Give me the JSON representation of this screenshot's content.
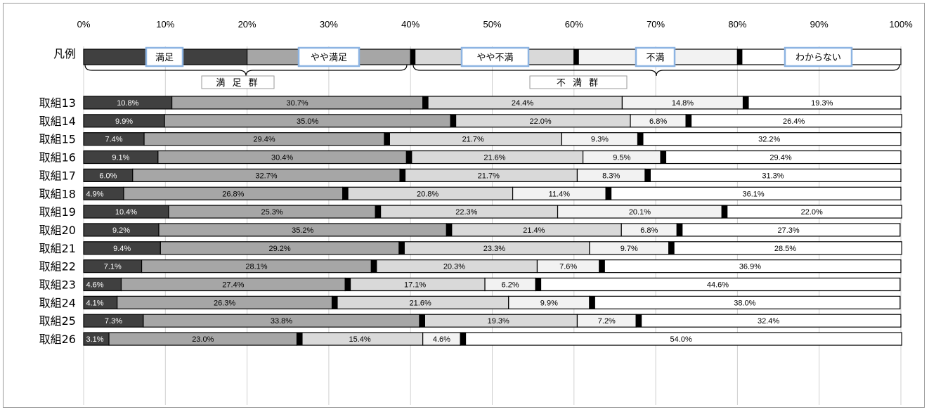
{
  "chart_data": {
    "type": "bar",
    "orientation": "horizontal-stacked-100",
    "x_ticks": [
      "0%",
      "10%",
      "20%",
      "30%",
      "40%",
      "50%",
      "60%",
      "70%",
      "80%",
      "90%",
      "100%"
    ],
    "xlim": [
      0,
      100
    ],
    "grid": true,
    "legend": {
      "row_label": "凡例",
      "items": [
        "満足",
        "やや満足",
        "やや不満",
        "不満",
        "わからない"
      ],
      "groups": [
        "満 足 群",
        "不 満 群"
      ]
    },
    "categories": [
      "取組13",
      "取組14",
      "取組15",
      "取組16",
      "取組17",
      "取組18",
      "取組19",
      "取組20",
      "取組21",
      "取組22",
      "取組23",
      "取組24",
      "取組25",
      "取組26"
    ],
    "series": [
      {
        "name": "満足",
        "color": "#404040",
        "label_color": "#ffffff",
        "values": [
          10.8,
          9.9,
          7.4,
          9.1,
          6.0,
          4.9,
          10.4,
          9.2,
          9.4,
          7.1,
          4.6,
          4.1,
          7.3,
          3.1
        ]
      },
      {
        "name": "やや満足",
        "color": "#a6a6a6",
        "label_color": "#000000",
        "values": [
          30.7,
          35.0,
          29.4,
          30.4,
          32.7,
          26.8,
          25.3,
          35.2,
          29.2,
          28.1,
          27.4,
          26.3,
          33.8,
          23.0
        ]
      },
      {
        "name": "やや不満",
        "color": "#d9d9d9",
        "label_color": "#000000",
        "values": [
          24.4,
          22.0,
          21.7,
          21.6,
          21.7,
          20.8,
          22.3,
          21.4,
          23.3,
          20.3,
          17.1,
          21.6,
          19.3,
          15.4
        ]
      },
      {
        "name": "不満",
        "color": "#f2f2f2",
        "label_color": "#000000",
        "values": [
          14.8,
          6.8,
          9.3,
          9.5,
          8.3,
          11.4,
          20.1,
          6.8,
          9.7,
          7.6,
          6.2,
          9.9,
          7.2,
          4.6
        ]
      },
      {
        "name": "わからない",
        "color": "#ffffff",
        "label_color": "#000000",
        "values": [
          19.3,
          26.4,
          32.2,
          29.4,
          31.3,
          36.1,
          22.0,
          27.3,
          28.5,
          36.9,
          44.6,
          38.0,
          32.4,
          54.0
        ]
      }
    ]
  }
}
